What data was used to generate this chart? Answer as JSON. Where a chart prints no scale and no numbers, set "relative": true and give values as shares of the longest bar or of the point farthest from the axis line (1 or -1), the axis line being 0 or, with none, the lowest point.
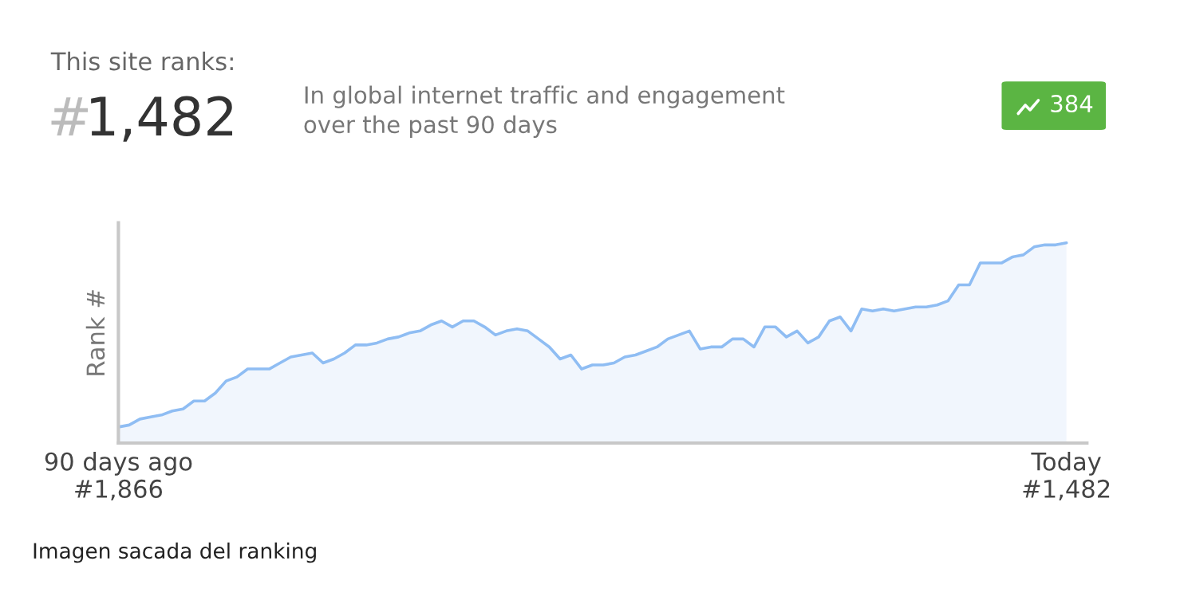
{
  "chart_data": {
    "type": "area",
    "relative": true,
    "ylabel": "Rank #",
    "categories": [
      "90 days ago\n#1,866",
      null,
      null,
      null,
      null,
      null,
      null,
      null,
      null,
      null,
      null,
      null,
      null,
      null,
      null,
      null,
      null,
      null,
      null,
      null,
      null,
      null,
      null,
      null,
      null,
      null,
      null,
      null,
      null,
      null,
      null,
      null,
      null,
      null,
      null,
      null,
      null,
      null,
      null,
      null,
      null,
      null,
      null,
      null,
      null,
      null,
      null,
      null,
      null,
      null,
      null,
      null,
      null,
      null,
      null,
      null,
      null,
      null,
      null,
      null,
      null,
      null,
      null,
      null,
      null,
      null,
      null,
      null,
      null,
      null,
      null,
      null,
      null,
      null,
      null,
      null,
      null,
      null,
      null,
      null,
      null,
      null,
      null,
      null,
      null,
      null,
      null,
      null,
      "Today\n#1,482"
    ],
    "series": [
      {
        "color": "#8fbdf3",
        "values": [
          0.08,
          0.09,
          0.12,
          0.13,
          0.14,
          0.16,
          0.17,
          0.21,
          0.21,
          0.25,
          0.31,
          0.33,
          0.37,
          0.37,
          0.37,
          0.4,
          0.43,
          0.44,
          0.45,
          0.4,
          0.42,
          0.45,
          0.49,
          0.49,
          0.5,
          0.52,
          0.53,
          0.55,
          0.56,
          0.59,
          0.61,
          0.58,
          0.61,
          0.61,
          0.58,
          0.54,
          0.56,
          0.57,
          0.56,
          0.52,
          0.48,
          0.42,
          0.44,
          0.37,
          0.39,
          0.39,
          0.4,
          0.43,
          0.44,
          0.46,
          0.48,
          0.52,
          0.54,
          0.56,
          0.47,
          0.48,
          0.48,
          0.52,
          0.52,
          0.48,
          0.58,
          0.58,
          0.53,
          0.56,
          0.5,
          0.53,
          0.61,
          0.63,
          0.56,
          0.67,
          0.66,
          0.67,
          0.66,
          0.67,
          0.68,
          0.68,
          0.69,
          0.71,
          0.79,
          0.79,
          0.9,
          0.9,
          0.9,
          0.93,
          0.94,
          0.98,
          0.99,
          0.99,
          1.0
        ]
      }
    ],
    "annotations": [
      "This site ranks:",
      "#",
      "1,482",
      "In global internet traffic and engagement\nover the past 90 days",
      "384",
      "Imagen sacada del ranking"
    ],
    "grid": false,
    "legend": false
  }
}
